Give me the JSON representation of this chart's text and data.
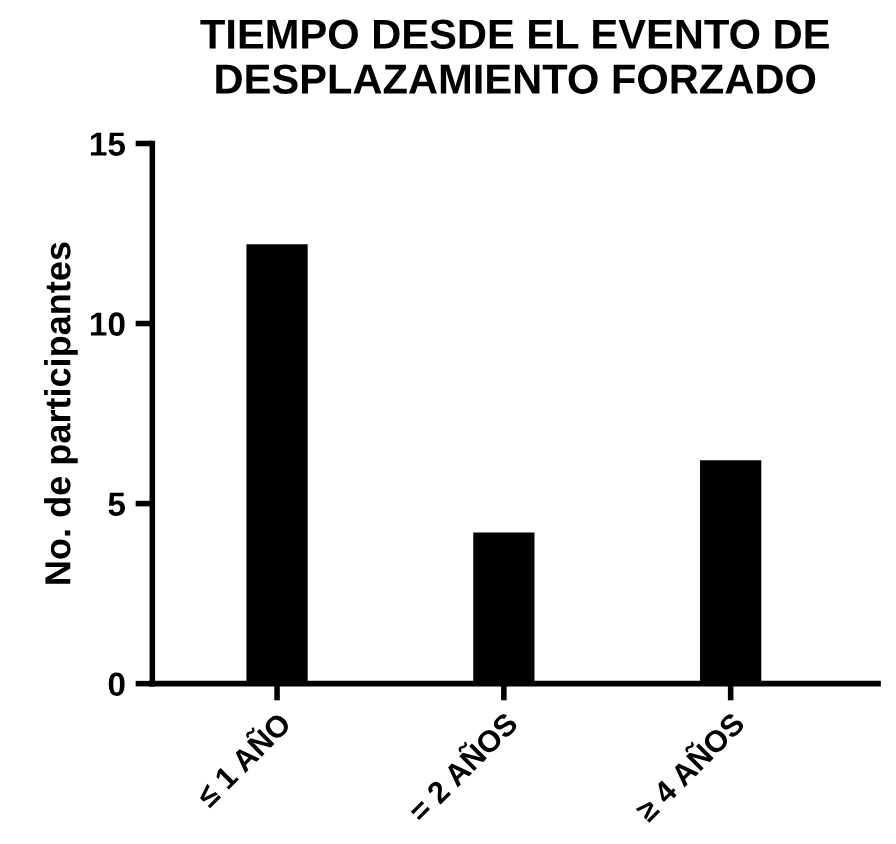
{
  "chart_data": {
    "type": "bar",
    "title": "TIEMPO DESDE EL EVENTO DE\nDESPLAZAMIENTO FORZADO",
    "ylabel": "No. de participantes",
    "categories": [
      "≤ 1 AÑO",
      "= 2 AÑOS",
      "≥ 4 AÑOS"
    ],
    "values": [
      12.2,
      4.2,
      6.2
    ],
    "color": "#000000",
    "ylim": [
      0,
      15
    ],
    "yticks": [
      0,
      5,
      10,
      15
    ],
    "grid": false
  }
}
